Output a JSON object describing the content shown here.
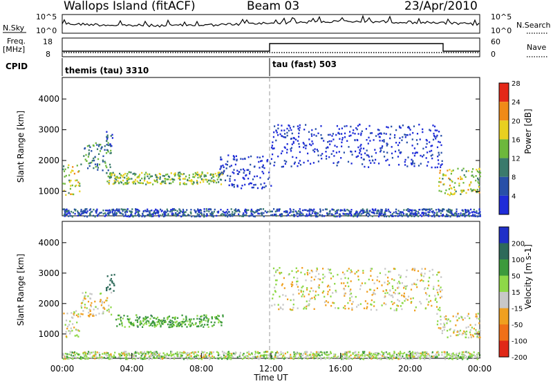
{
  "header": {
    "station": "Wallops Island (fitACF)",
    "beam": "Beam 03",
    "date": "23/Apr/2010"
  },
  "status_panels": {
    "nsky": {
      "label": "N.Sky",
      "ticks": [
        "10^5",
        "10^0"
      ]
    },
    "nsearch": {
      "label": "N.Search",
      "ticks": [
        "10^5",
        "10^0"
      ]
    },
    "freq": {
      "label": "Freq.",
      "unit": "[MHz]",
      "ticks": [
        "18",
        "8"
      ]
    },
    "nave": {
      "label": "Nave",
      "ticks": [
        "60",
        "0"
      ]
    },
    "cpid": {
      "label": "CPID",
      "modes": [
        {
          "name": "themis (tau) 3310",
          "start_hour": 0
        },
        {
          "name": "tau (fast) 503",
          "start_hour": 12
        }
      ]
    }
  },
  "chart_data": [
    {
      "type": "heatmap",
      "name": "power",
      "ylabel": "Slant Range [km]",
      "yticks": [
        1000,
        2000,
        3000,
        4000
      ],
      "ylim": [
        200,
        4700
      ],
      "xlim": [
        0,
        24
      ],
      "colorbar": {
        "label": "Power [dB]",
        "ticks": [
          4,
          8,
          12,
          16,
          20,
          24,
          28
        ],
        "colors": [
          "#1f2cd8",
          "#2850a8",
          "#3a7a6c",
          "#6db83c",
          "#e8d020",
          "#f08a18",
          "#e42818"
        ]
      },
      "echo_regions": [
        {
          "t0": 0.0,
          "t1": 1.0,
          "r0": 900,
          "r1": 1900,
          "level": 20
        },
        {
          "t0": 1.0,
          "t1": 2.8,
          "r0": 1700,
          "r1": 2600,
          "level": 14
        },
        {
          "t0": 2.5,
          "t1": 2.9,
          "r0": 2500,
          "r1": 3000,
          "level": 10
        },
        {
          "t0": 2.5,
          "t1": 9.2,
          "r0": 1250,
          "r1": 1650,
          "level": 18
        },
        {
          "t0": 9.0,
          "t1": 12.0,
          "r0": 1100,
          "r1": 2200,
          "level": 6
        },
        {
          "t0": 12.0,
          "t1": 21.8,
          "r0": 1800,
          "r1": 3200,
          "level": 5
        },
        {
          "t0": 21.5,
          "t1": 24.0,
          "r0": 900,
          "r1": 1800,
          "level": 20
        },
        {
          "t0": 0.0,
          "t1": 24.0,
          "r0": 200,
          "r1": 450,
          "level": 10
        }
      ]
    },
    {
      "type": "heatmap",
      "name": "velocity",
      "ylabel": "Slant Range [km]",
      "yticks": [
        1000,
        2000,
        3000,
        4000
      ],
      "ylim": [
        200,
        4700
      ],
      "xlim": [
        0,
        24
      ],
      "xlabel": "Time UT",
      "xticks": [
        "00:00",
        "04:00",
        "08:00",
        "12:00",
        "16:00",
        "20:00",
        "00:00"
      ],
      "colorbar": {
        "label": "Velocity [m s-1]",
        "ticks": [
          200,
          100,
          50,
          15,
          -15,
          -50,
          -100,
          -200
        ],
        "colors": [
          "#2030c8",
          "#2e6a5a",
          "#3c9a3c",
          "#8ed848",
          "#c8c8c8",
          "#f0a020",
          "#f07018",
          "#e02818"
        ]
      },
      "echo_regions": [
        {
          "t0": 0.0,
          "t1": 1.0,
          "r0": 900,
          "r1": 1800,
          "level": 0
        },
        {
          "t0": 1.0,
          "t1": 2.8,
          "r0": 1600,
          "r1": 2400,
          "level": 0
        },
        {
          "t0": 2.5,
          "t1": 3.0,
          "r0": 2400,
          "r1": 3000,
          "level": 150
        },
        {
          "t0": 3.0,
          "t1": 9.2,
          "r0": 1250,
          "r1": 1650,
          "level": 60
        },
        {
          "t0": 12.0,
          "t1": 21.8,
          "r0": 1800,
          "r1": 3200,
          "level": 0
        },
        {
          "t0": 21.5,
          "t1": 24.0,
          "r0": 900,
          "r1": 1700,
          "level": 0
        },
        {
          "t0": 0.0,
          "t1": 24.0,
          "r0": 200,
          "r1": 450,
          "level": 20
        }
      ]
    }
  ]
}
